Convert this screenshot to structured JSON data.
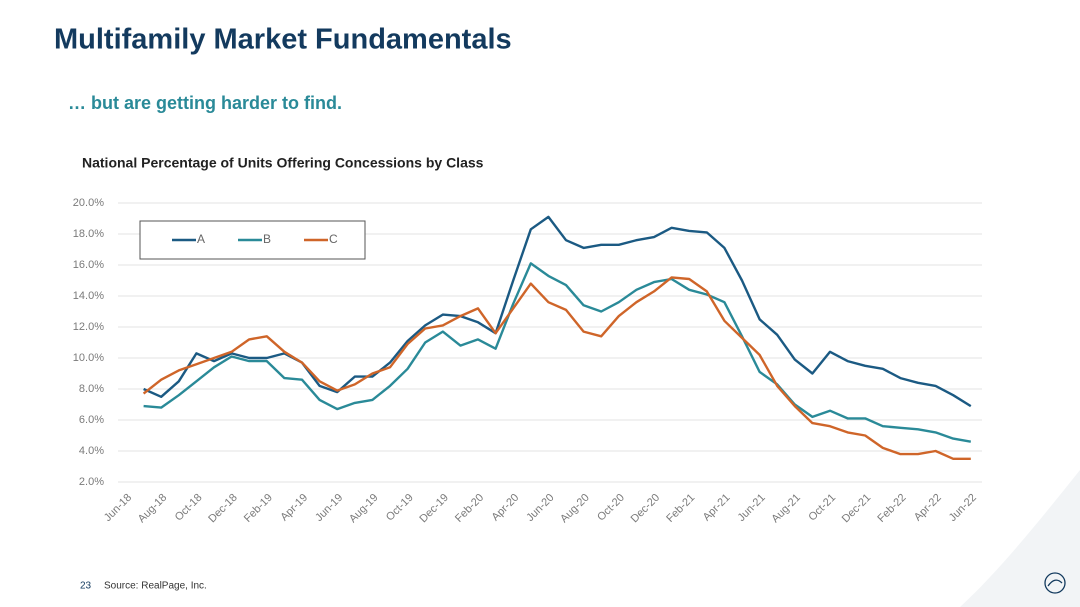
{
  "header": {
    "title": "Multifamily Market Fundamentals",
    "subtitle": "… but are getting harder to find."
  },
  "chart_data": {
    "type": "line",
    "title": "National Percentage of Units Offering Concessions by Class",
    "categories": [
      "Jun-18",
      null,
      "Aug-18",
      null,
      "Oct-18",
      null,
      "Dec-18",
      null,
      "Feb-19",
      null,
      "Apr-19",
      null,
      "Jun-19",
      null,
      "Aug-19",
      null,
      "Oct-19",
      null,
      "Dec-19",
      null,
      "Feb-20",
      null,
      "Apr-20",
      null,
      "Jun-20",
      null,
      "Aug-20",
      null,
      "Oct-20",
      null,
      "Dec-20",
      null,
      "Feb-21",
      null,
      "Apr-21",
      null,
      "Jun-21",
      null,
      "Aug-21",
      null,
      "Oct-21",
      null,
      "Dec-21",
      null,
      "Feb-22",
      null,
      "Apr-22",
      null,
      "Jun-22"
    ],
    "series": [
      {
        "name": "A",
        "color": "#1b5a83",
        "values": [
          null,
          8.0,
          7.5,
          8.5,
          10.3,
          9.8,
          10.3,
          10.0,
          10.0,
          10.3,
          9.7,
          8.2,
          7.8,
          8.8,
          8.8,
          9.7,
          11.1,
          12.1,
          12.8,
          12.7,
          12.3,
          11.6,
          15.0,
          18.3,
          19.1,
          17.6,
          17.1,
          17.3,
          17.3,
          17.6,
          17.8,
          18.4,
          18.2,
          18.1,
          17.1,
          15.0,
          12.5,
          11.5,
          9.9,
          9.0,
          10.4,
          9.8,
          9.5,
          9.3,
          8.7,
          8.4,
          8.2,
          7.6,
          6.9
        ]
      },
      {
        "name": "B",
        "color": "#2a8a98",
        "values": [
          null,
          6.9,
          6.8,
          7.6,
          8.5,
          9.4,
          10.1,
          9.8,
          9.8,
          8.7,
          8.6,
          7.3,
          6.7,
          7.1,
          7.3,
          8.2,
          9.3,
          11.0,
          11.7,
          10.8,
          11.2,
          10.6,
          13.5,
          16.1,
          15.3,
          14.7,
          13.4,
          13.0,
          13.6,
          14.4,
          14.9,
          15.1,
          14.4,
          14.1,
          13.6,
          11.4,
          9.1,
          8.3,
          7.0,
          6.2,
          6.6,
          6.1,
          6.1,
          5.6,
          5.5,
          5.4,
          5.2,
          4.8,
          4.6
        ]
      },
      {
        "name": "C",
        "color": "#cf6529",
        "values": [
          null,
          7.7,
          8.6,
          9.2,
          9.6,
          10.0,
          10.4,
          11.2,
          11.4,
          10.4,
          9.7,
          8.5,
          7.9,
          8.3,
          9.0,
          9.4,
          10.9,
          11.9,
          12.1,
          12.7,
          13.2,
          11.6,
          13.2,
          14.8,
          13.6,
          13.1,
          11.7,
          11.4,
          12.7,
          13.6,
          14.3,
          15.2,
          15.1,
          14.3,
          12.4,
          11.3,
          10.2,
          8.2,
          6.9,
          5.8,
          5.6,
          5.2,
          5.0,
          4.2,
          3.8,
          3.8,
          4.0,
          3.5,
          3.5
        ]
      }
    ],
    "ylim": [
      2,
      20
    ],
    "yticks": [
      {
        "value": 2,
        "label": "2.0%"
      },
      {
        "value": 4,
        "label": "4.0%"
      },
      {
        "value": 6,
        "label": "6.0%"
      },
      {
        "value": 8,
        "label": "8.0%"
      },
      {
        "value": 10,
        "label": "10.0%"
      },
      {
        "value": 12,
        "label": "12.0%"
      },
      {
        "value": 14,
        "label": "14.0%"
      },
      {
        "value": 16,
        "label": "16.0%"
      },
      {
        "value": 18,
        "label": "18.0%"
      },
      {
        "value": 20,
        "label": "20.0%"
      }
    ],
    "grid": true,
    "legend": "upper left"
  },
  "footer": {
    "page_number": "23",
    "source": "Source: RealPage, Inc."
  }
}
